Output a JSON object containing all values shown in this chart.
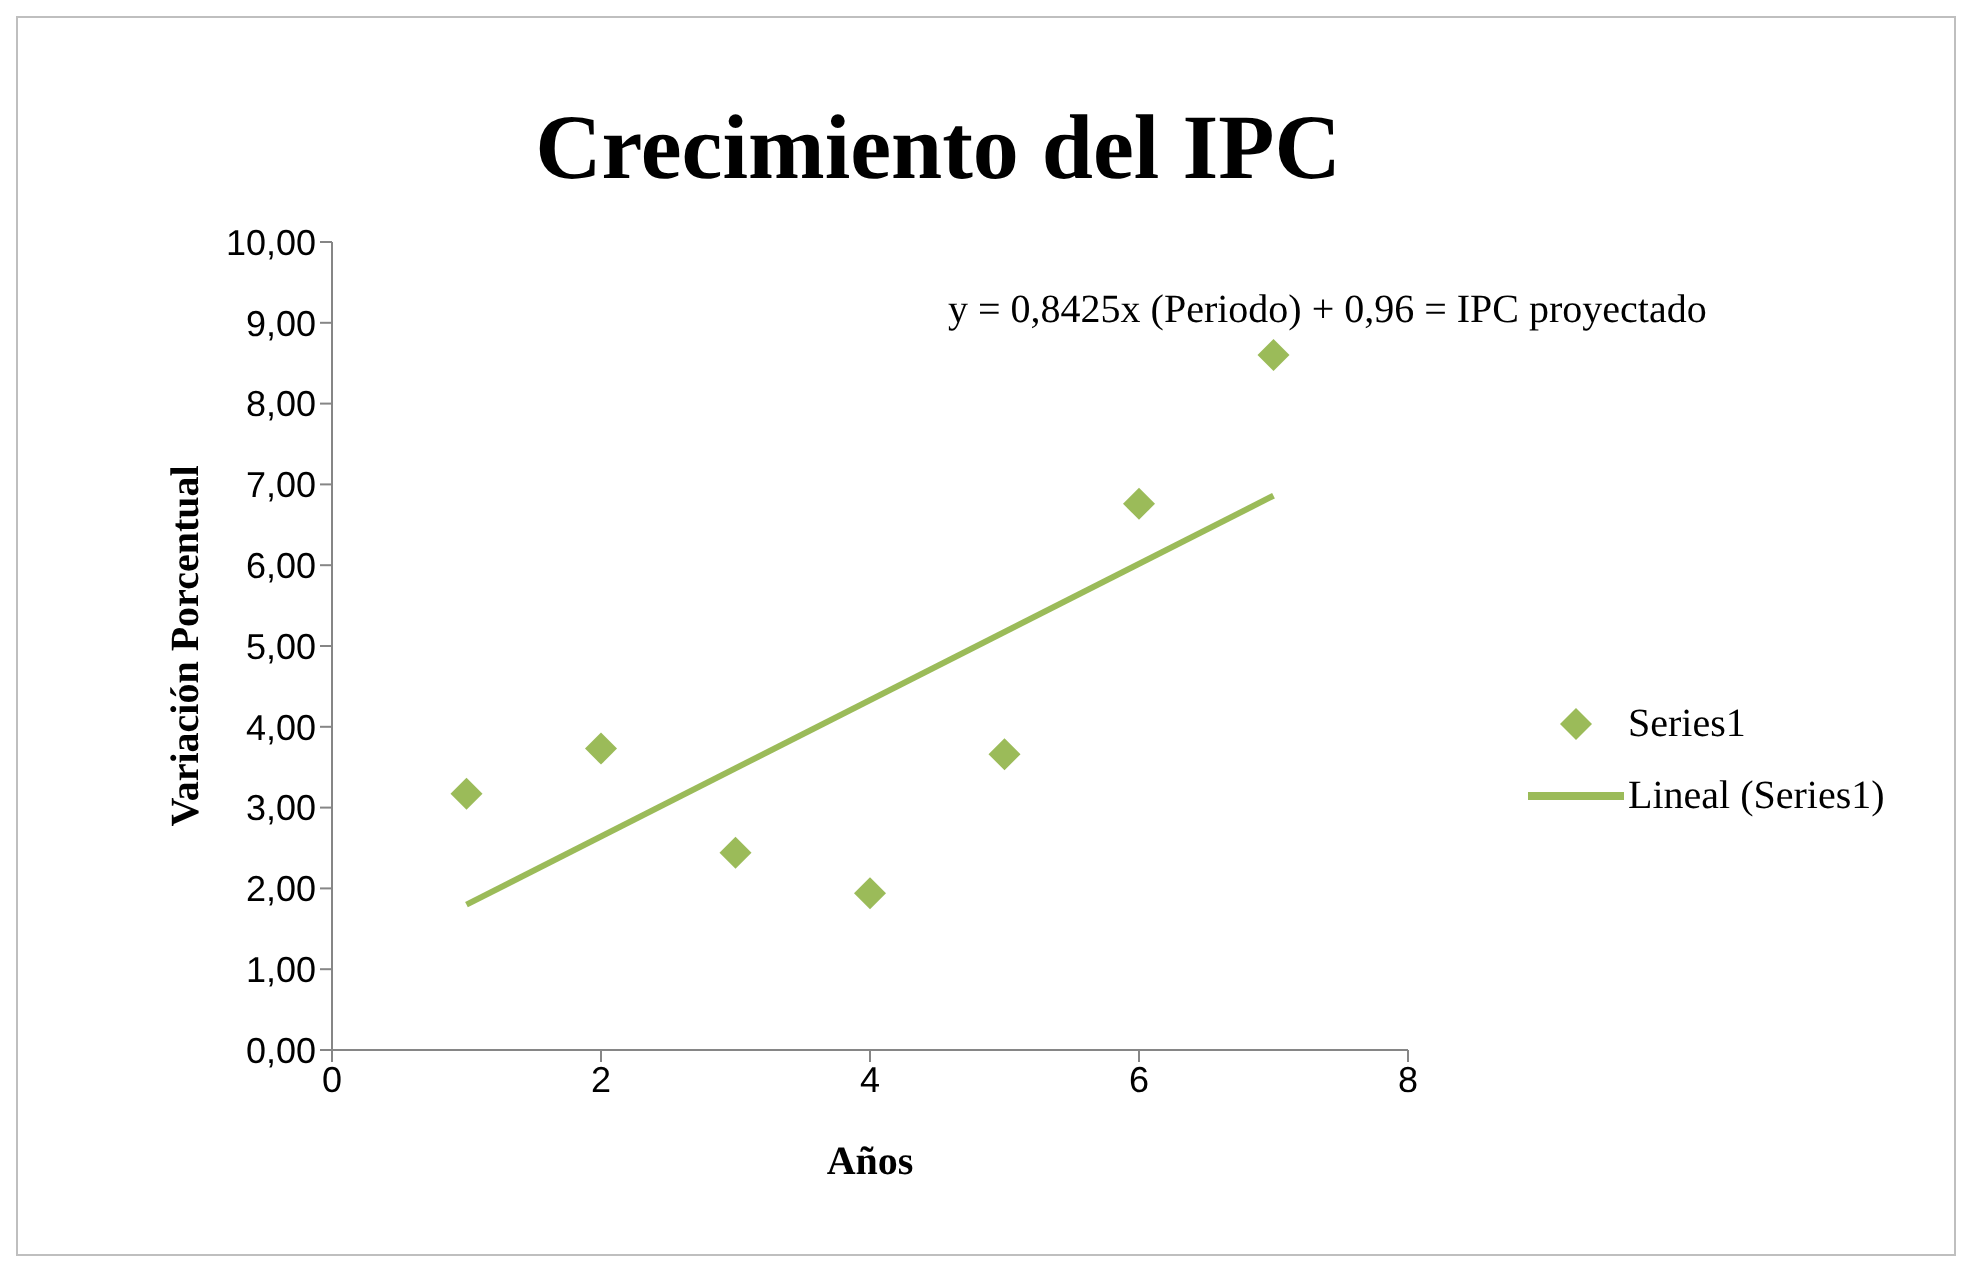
{
  "chart_data": {
    "type": "scatter",
    "title": "Crecimiento del IPC",
    "xlabel": "Años",
    "ylabel": "Variación Porcentual",
    "x": [
      1,
      2,
      3,
      4,
      5,
      6,
      7
    ],
    "series": [
      {
        "name": "Series1",
        "type": "scatter",
        "color": "#9bbb59",
        "marker": "diamond",
        "values": [
          3.17,
          3.73,
          2.44,
          1.94,
          3.66,
          6.76,
          8.6
        ]
      },
      {
        "name": "Lineal (Series1)",
        "type": "line",
        "color": "#9bbb59",
        "x": [
          1,
          7
        ],
        "values": [
          1.8,
          6.86
        ]
      }
    ],
    "xlim": [
      0,
      8
    ],
    "xticks": [
      0,
      2,
      4,
      6,
      8
    ],
    "ylim": [
      0,
      10
    ],
    "yticks": [
      {
        "value": 0,
        "label": "0,00"
      },
      {
        "value": 1,
        "label": "1,00"
      },
      {
        "value": 2,
        "label": "2,00"
      },
      {
        "value": 3,
        "label": "3,00"
      },
      {
        "value": 4,
        "label": "4,00"
      },
      {
        "value": 5,
        "label": "5,00"
      },
      {
        "value": 6,
        "label": "6,00"
      },
      {
        "value": 7,
        "label": "7,00"
      },
      {
        "value": 8,
        "label": "8,00"
      },
      {
        "value": 9,
        "label": "9,00"
      },
      {
        "value": 10,
        "label": "10,00"
      }
    ],
    "grid": false,
    "legend": "right",
    "annotations": [
      "y = 0,8425x (Periodo) + 0,96 = IPC proyectado"
    ]
  }
}
